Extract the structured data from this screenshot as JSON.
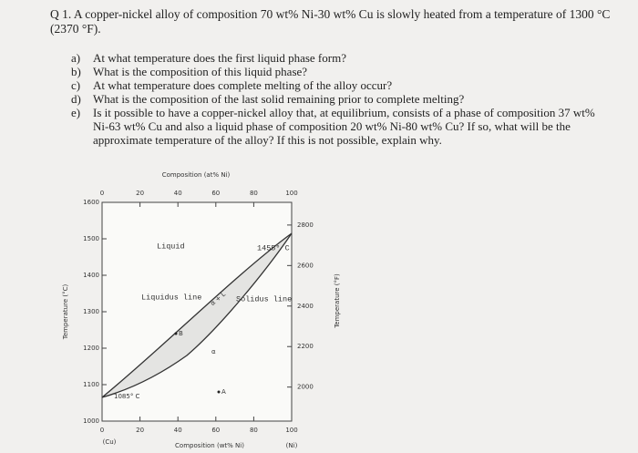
{
  "question": {
    "number": "Q 1.",
    "text": "A copper-nickel alloy of composition 70 wt% Ni-30 wt% Cu is slowly heated from a temperature of 1300 °C (2370 °F)."
  },
  "items": [
    {
      "marker": "a)",
      "text": "At what temperature does the first liquid phase form?"
    },
    {
      "marker": "b)",
      "text": "What is the composition of this liquid phase?"
    },
    {
      "marker": "c)",
      "text": "At what temperature does complete melting of the alloy occur?"
    },
    {
      "marker": "d)",
      "text": "What is the composition of the last solid remaining prior to complete melting?"
    },
    {
      "marker": "e)",
      "text": "Is it possible to have a copper-nickel alloy that, at equilibrium, consists of a phase of composition 37 wt% Ni-63 wt% Cu and also a liquid phase of composition 20 wt% Ni-80 wt% Cu? If so, what will be the approximate temperature of the alloy? If this is not possible, explain why."
    }
  ],
  "diagram": {
    "top_axis_title": "Composition (at% Ni)",
    "top_ticks": [
      0,
      20,
      40,
      60,
      80,
      100
    ],
    "bottom_axis_title": "Composition (wt% Ni)",
    "bottom_ticks": [
      0,
      20,
      40,
      60,
      80,
      100
    ],
    "left_axis_title": "Temperature (°C)",
    "left_ticks": [
      1000,
      1100,
      1200,
      1300,
      1400,
      1500,
      1600
    ],
    "right_axis_title": "Temperature (°F)",
    "right_ticks": [
      2000,
      2200,
      2400,
      2600,
      2800
    ],
    "left_end": "(Cu)",
    "right_end": "(Ni)",
    "labels": {
      "liquid": "Liquid",
      "ni_melt": "1455° C",
      "liquidus": "Liquidus line",
      "solidus": "Solidus line",
      "two_phase": "α + L",
      "point_b": "B",
      "alpha": "α",
      "point_a": "A",
      "cu_melt": "1085° C"
    }
  }
}
